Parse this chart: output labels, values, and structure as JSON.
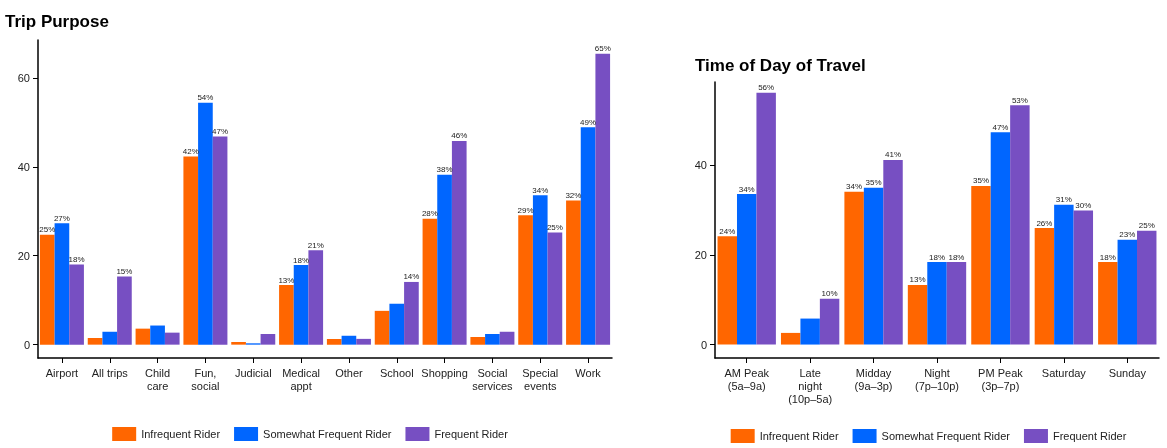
{
  "chart_data": [
    {
      "type": "bar",
      "title": "Trip Purpose",
      "categories": [
        "Airport",
        "All trips",
        "Child\ncare",
        "Fun,\nsocial",
        "Judicial",
        "Medical\nappt",
        "Other",
        "School",
        "Shopping",
        "Social\nservices",
        "Special\nevents",
        "Work"
      ],
      "series": [
        {
          "name": "Infrequent Rider",
          "color": "#ff6600",
          "values": [
            24.7,
            1.5,
            3.6,
            42.3,
            0.6,
            13.4,
            1.3,
            7.6,
            28.3,
            1.7,
            29.1,
            32.4
          ],
          "value_labels": [
            "25%",
            null,
            null,
            "42%",
            null,
            "13%",
            null,
            null,
            "28%",
            null,
            "29%",
            "32%"
          ]
        },
        {
          "name": "Somewhat Frequent Rider",
          "color": "#0066ff",
          "values": [
            27.3,
            2.9,
            4.3,
            54.4,
            0.3,
            17.9,
            2.0,
            9.2,
            38.2,
            2.4,
            33.6,
            48.9
          ],
          "value_labels": [
            "27%",
            null,
            null,
            "54%",
            null,
            "18%",
            null,
            null,
            "38%",
            null,
            "34%",
            "49%"
          ]
        },
        {
          "name": "Frequent Rider",
          "color": "#774fc2",
          "values": [
            18.0,
            15.3,
            2.7,
            46.8,
            2.4,
            21.2,
            1.3,
            14.1,
            45.8,
            2.9,
            25.2,
            65.4
          ],
          "value_labels": [
            "18%",
            "15%",
            null,
            "47%",
            null,
            "21%",
            null,
            "14%",
            "46%",
            null,
            "25%",
            "65%"
          ]
        }
      ],
      "ylim": [
        -3,
        68.5
      ],
      "yticks": [
        0,
        20,
        40,
        60
      ],
      "grid": false,
      "legend": "bottom"
    },
    {
      "type": "bar",
      "title": "Time of Day of Travel",
      "categories": [
        "AM Peak\n(5a–9a)",
        "Late\nnight\n(10p–5a)",
        "Midday\n(9a–3p)",
        "Night\n(7p–10p)",
        "PM Peak\n(3p–7p)",
        "Saturday",
        "Sunday"
      ],
      "series": [
        {
          "name": "Infrequent Rider",
          "color": "#ff6600",
          "values": [
            24.2,
            2.6,
            34.1,
            13.3,
            35.4,
            26.0,
            18.4
          ],
          "value_labels": [
            "24%",
            null,
            "34%",
            "13%",
            "35%",
            "26%",
            "18%"
          ]
        },
        {
          "name": "Somewhat Frequent Rider",
          "color": "#0066ff",
          "values": [
            33.6,
            5.8,
            35.0,
            18.4,
            47.4,
            31.2,
            23.4
          ],
          "value_labels": [
            "34%",
            null,
            "35%",
            "18%",
            "47%",
            "31%",
            "23%"
          ]
        },
        {
          "name": "Frequent Rider",
          "color": "#774fc2",
          "values": [
            56.2,
            10.2,
            41.2,
            18.4,
            53.4,
            29.9,
            25.4
          ],
          "value_labels": [
            "56%",
            "10%",
            "41%",
            "18%",
            "53%",
            "30%",
            "25%"
          ]
        }
      ],
      "ylim": [
        -3,
        58.6
      ],
      "yticks": [
        0,
        20,
        40
      ],
      "grid": false,
      "legend": "bottom"
    }
  ]
}
